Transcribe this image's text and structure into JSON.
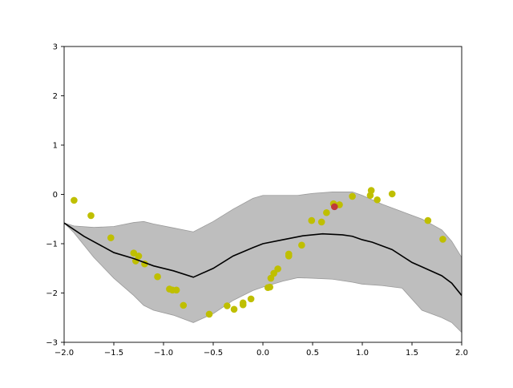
{
  "chart_data": {
    "type": "scatter",
    "title": "",
    "xlabel": "",
    "ylabel": "",
    "xlim": [
      -2.0,
      2.0
    ],
    "ylim": [
      -3,
      3
    ],
    "grid": false,
    "x_ticks": [
      -2.0,
      -1.5,
      -1.0,
      -0.5,
      0.0,
      0.5,
      1.0,
      1.5,
      2.0
    ],
    "x_tick_labels": [
      "−2.0",
      "−1.5",
      "−1.0",
      "−0.5",
      "0.0",
      "0.5",
      "1.0",
      "1.5",
      "2.0"
    ],
    "y_ticks": [
      -3,
      -2,
      -1,
      0,
      1,
      2,
      3
    ],
    "y_tick_labels": [
      "−3",
      "−2",
      "−1",
      "0",
      "1",
      "2",
      "3"
    ],
    "band": {
      "color": "#bebebe",
      "x": [
        -2.0,
        -1.9,
        -1.7,
        -1.5,
        -1.3,
        -1.2,
        -1.1,
        -0.9,
        -0.7,
        -0.5,
        -0.3,
        -0.1,
        0.0,
        0.2,
        0.35,
        0.5,
        0.7,
        0.9,
        1.0,
        1.2,
        1.4,
        1.6,
        1.8,
        1.9,
        2.0
      ],
      "upper": [
        -0.58,
        -0.64,
        -0.67,
        -0.65,
        -0.57,
        -0.55,
        -0.6,
        -0.68,
        -0.76,
        -0.55,
        -0.3,
        -0.08,
        -0.02,
        -0.02,
        -0.02,
        0.02,
        0.05,
        0.05,
        -0.02,
        -0.2,
        -0.35,
        -0.5,
        -0.72,
        -0.95,
        -1.28
      ],
      "lower": [
        -0.58,
        -0.78,
        -1.28,
        -1.7,
        -2.05,
        -2.25,
        -2.35,
        -2.45,
        -2.6,
        -2.42,
        -2.15,
        -1.95,
        -1.88,
        -1.76,
        -1.69,
        -1.7,
        -1.72,
        -1.78,
        -1.82,
        -1.85,
        -1.9,
        -2.35,
        -2.5,
        -2.6,
        -2.8
      ]
    },
    "mean_line": {
      "color": "#000000",
      "x": [
        -2.0,
        -1.8,
        -1.5,
        -1.3,
        -1.1,
        -0.9,
        -0.7,
        -0.5,
        -0.3,
        -0.1,
        0.0,
        0.2,
        0.4,
        0.6,
        0.8,
        0.9,
        1.0,
        1.1,
        1.3,
        1.5,
        1.6,
        1.8,
        1.9,
        2.0
      ],
      "y": [
        -0.58,
        -0.85,
        -1.18,
        -1.3,
        -1.45,
        -1.55,
        -1.68,
        -1.5,
        -1.25,
        -1.08,
        -1.0,
        -0.92,
        -0.84,
        -0.8,
        -0.82,
        -0.85,
        -0.92,
        -0.97,
        -1.12,
        -1.38,
        -1.47,
        -1.65,
        -1.8,
        -2.05
      ]
    },
    "series": [
      {
        "marker": "circle",
        "color": "#bfbf00",
        "alpha": 1.0,
        "points": [
          [
            -1.9,
            -0.12
          ],
          [
            -1.73,
            -0.43
          ],
          [
            -1.53,
            -0.88
          ],
          [
            -1.3,
            -1.19
          ],
          [
            -1.28,
            -1.35
          ],
          [
            -1.25,
            -1.25
          ],
          [
            -1.19,
            -1.41
          ],
          [
            -1.06,
            -1.67
          ],
          [
            -0.94,
            -1.92
          ],
          [
            -0.91,
            -1.94
          ],
          [
            -0.87,
            -1.94
          ],
          [
            -0.8,
            -2.25
          ],
          [
            -0.54,
            -2.43
          ],
          [
            -0.36,
            -2.26
          ],
          [
            -0.29,
            -2.33
          ],
          [
            -0.2,
            -2.24
          ],
          [
            -0.2,
            -2.2
          ],
          [
            -0.12,
            -2.12
          ],
          [
            0.05,
            -1.89
          ],
          [
            0.07,
            -1.88
          ],
          [
            0.08,
            -1.7
          ],
          [
            0.11,
            -1.6
          ],
          [
            0.15,
            -1.51
          ],
          [
            0.26,
            -1.25
          ],
          [
            0.26,
            -1.21
          ],
          [
            0.39,
            -1.03
          ],
          [
            0.49,
            -0.53
          ],
          [
            0.59,
            -0.56
          ],
          [
            0.64,
            -0.37
          ],
          [
            0.71,
            -0.19
          ],
          [
            0.77,
            -0.21
          ],
          [
            0.9,
            -0.04
          ],
          [
            1.08,
            -0.02
          ],
          [
            1.09,
            0.08
          ],
          [
            1.15,
            -0.11
          ],
          [
            1.3,
            0.01
          ],
          [
            1.66,
            -0.53
          ],
          [
            1.81,
            -0.91
          ]
        ]
      },
      {
        "marker": "circle",
        "color": "#c03a3a",
        "alpha": 1.0,
        "points": [
          [
            0.72,
            -0.25
          ]
        ]
      }
    ]
  }
}
